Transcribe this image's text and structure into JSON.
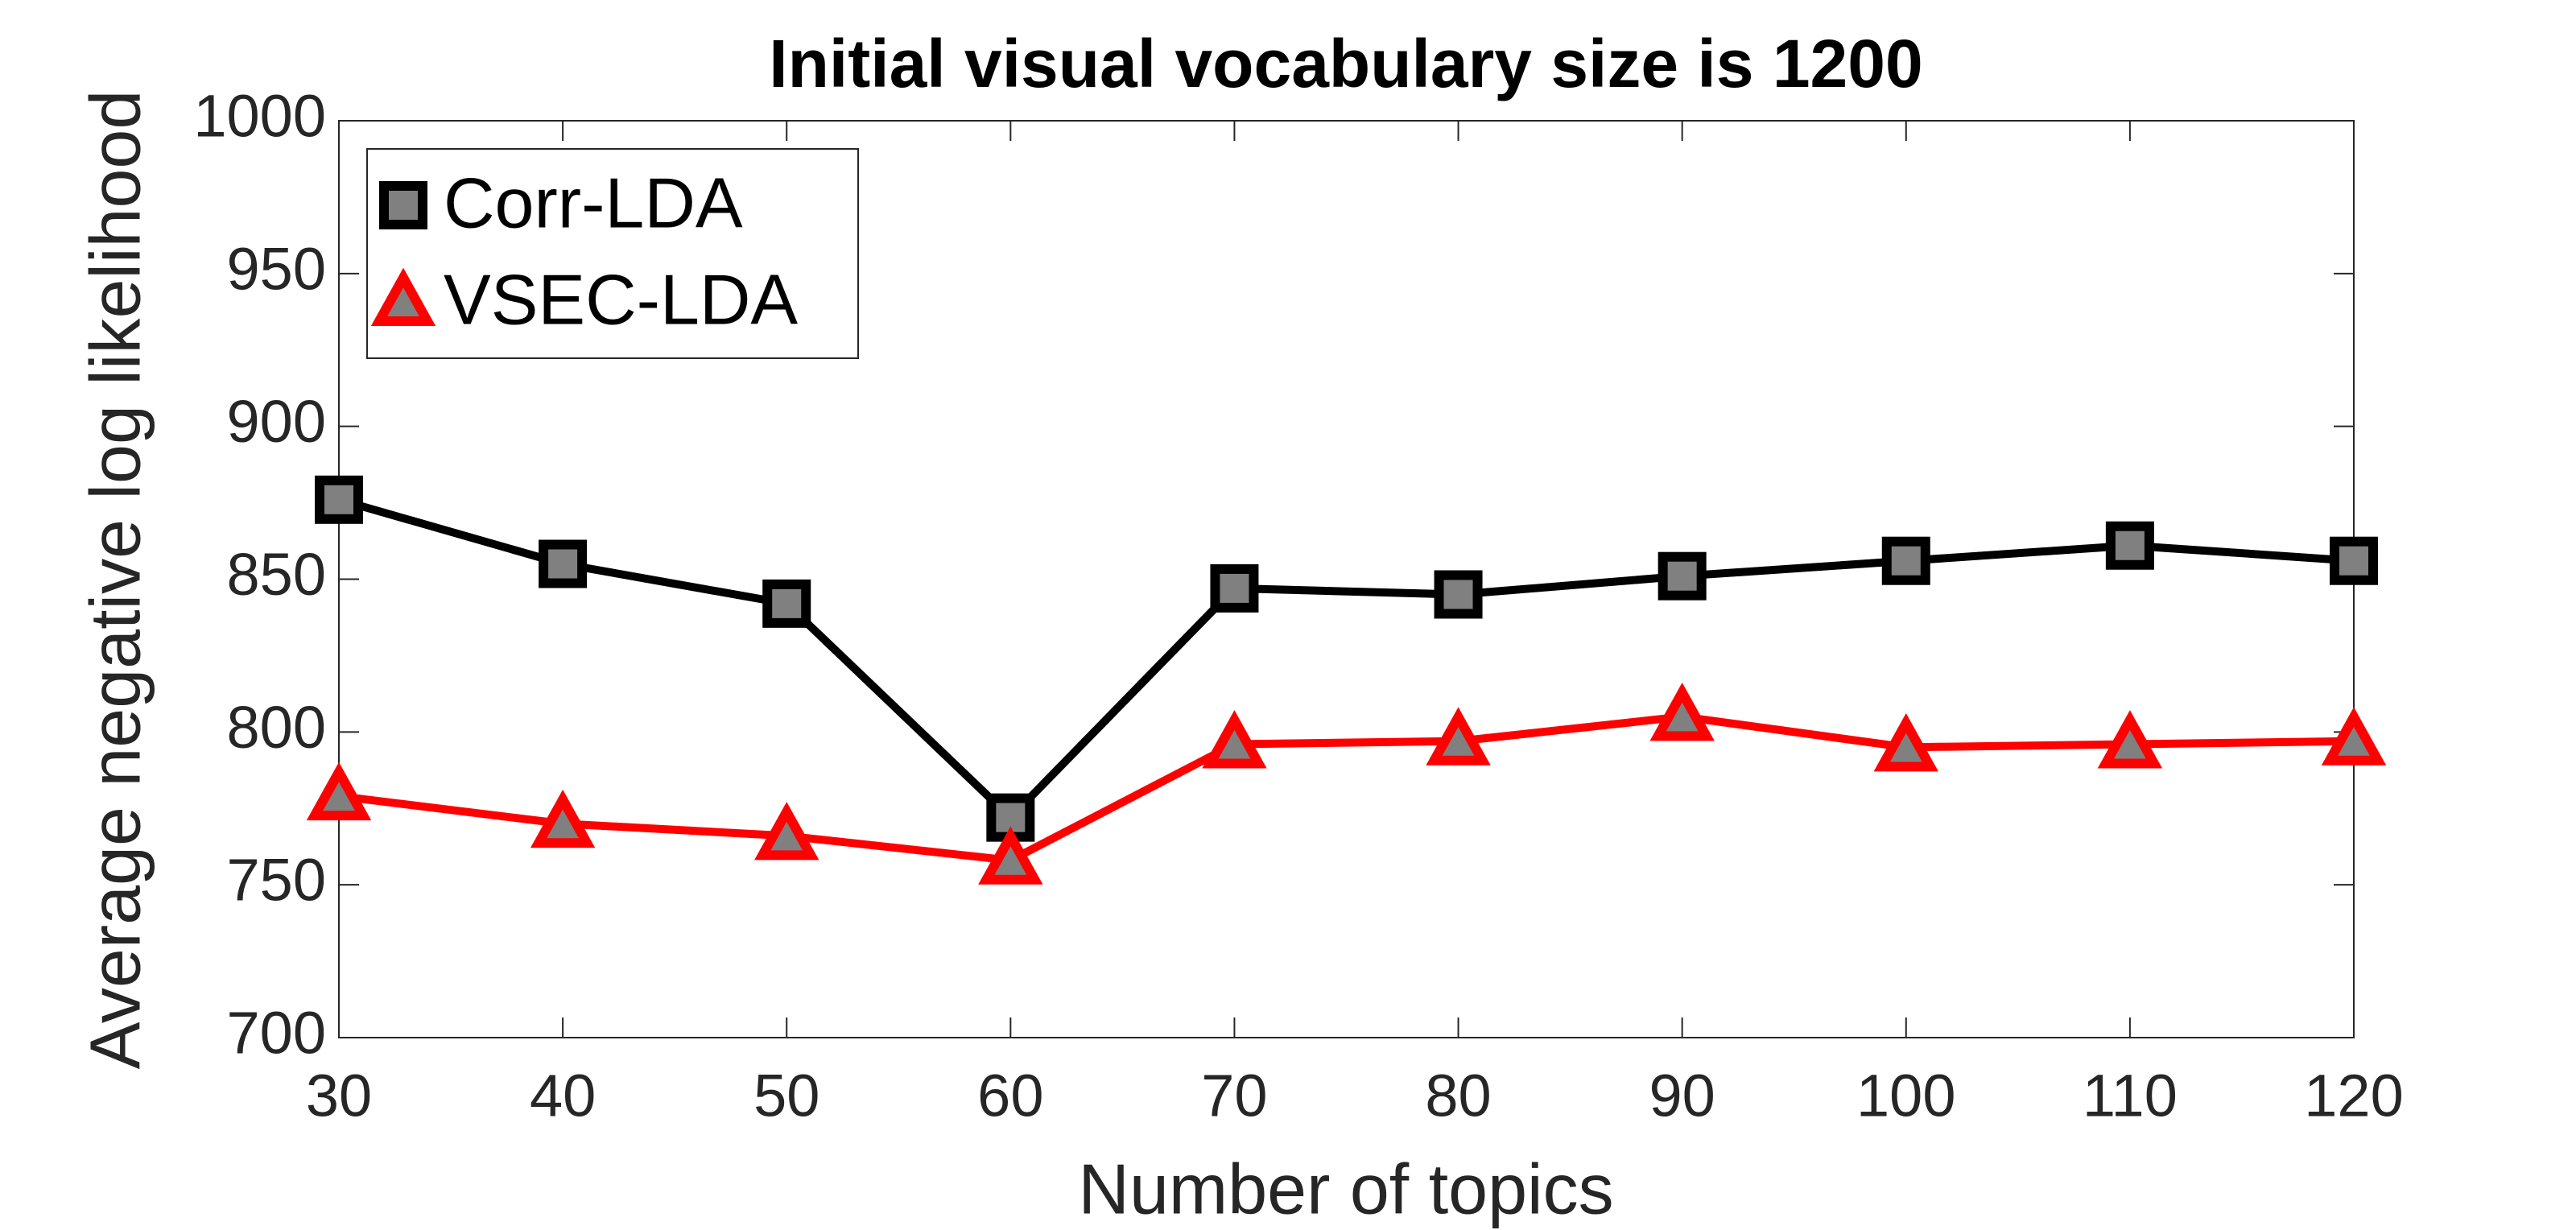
{
  "chart_data": {
    "type": "line",
    "title": "Initial visual vocabulary size is 1200",
    "x_label": "Number of topics",
    "y_label": "Average negative log likelihood",
    "x": [
      30,
      40,
      50,
      60,
      70,
      80,
      90,
      100,
      110,
      120
    ],
    "series": [
      {
        "name": "Corr-LDA",
        "color": "#000000",
        "marker": "square",
        "values": [
          876,
          855,
          842,
          772,
          847,
          845,
          851,
          856,
          861,
          856
        ]
      },
      {
        "name": "VSEC-LDA",
        "color": "#ff0000",
        "marker": "triangle",
        "values": [
          779,
          770,
          766,
          758,
          796,
          797,
          805,
          795,
          796,
          797
        ]
      }
    ],
    "xlim": [
      30,
      120
    ],
    "xticks": [
      30,
      40,
      50,
      60,
      70,
      80,
      90,
      100,
      110,
      120
    ],
    "ylim": [
      700,
      1000
    ],
    "yticks": [
      700,
      750,
      800,
      850,
      900,
      950,
      1000
    ],
    "legend": "upper-left",
    "grid": false
  }
}
